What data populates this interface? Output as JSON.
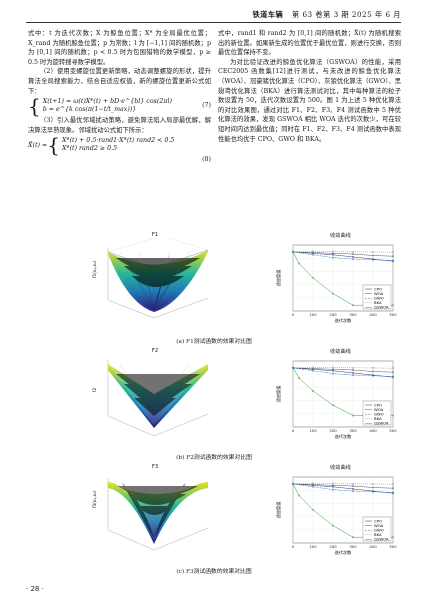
{
  "header": {
    "journal": "铁道车辆",
    "issue": "第 63 卷第 3 期 2025 年 6 月"
  },
  "left_col": {
    "p1": "式中：t 为迭代次数；X 为鲸鱼位置；X* 为全局最优位置；X_rand 为随机鲸鱼位置；p 为常数；l 为 [−1,1] 间的随机数；p 为 [0,1] 间的随机数；p < 0.5 时为包围猎物的数学模型，p ≥ 0.5 时为旋转搜寻数学模型。",
    "p2": "（2）使用变螺旋位置更新策略，动态调整螺旋的形状，提升算法全局搜索能力，结合自适应权值，新的螺旋位置更新公式如下：",
    "eq7_line1": "X(t+1) = ω(t)X*(t) + bD·e^{bl} cos(2πl)",
    "eq7_line2": "b = e^{k cos(π(1−t/t_max))}",
    "eq7_num": "(7)",
    "p3": "（3）引入最优邻域扰动策略，避免算法陷入局部最优解，解决算法早熟现象。邻域扰动公式如下所示：",
    "eq8_lhs": "X̃(t) =",
    "eq8_line1": "X*(t) + 0.5·rand1·X*(t)   rand2 < 0.5",
    "eq8_line2": "X*(t)                               rand2 ≥ 0.5",
    "eq8_num": "(8)"
  },
  "right_col": {
    "p1": "式中，rand1 和 rand2 为 [0,1] 间的随机数；X̃(t) 为随机搜索出的新位置。如果新生成的位置优于最优位置，则进行交换，否则最优位置保持不变。",
    "p2": "为对比验证改进的鲸鱼优化算法（GSWOA）的性能，采用 CEC2005 函数集[12]进行测试，与未改进的鲸鱼优化算法（WOA）、冠豪猪优化算法（CPO）、灰狼优化算法（GWO）、黑翅鸢优化算法（BKA）进行算法测试对比，其中每种算法的粒子数设置为 50，迭代次数设置为 500。图 1 为上述 5 种优化算法的对比效果图，通过对比 F1、F2、F3、F4 测试函数中 5 种优化算法的效果，发现 GSWOA 相比 WOA 迭代的次数少，可在较短时间内达到最优值；同时在 F1、F2、F3、F4 测试函数中表现性能也均优于 CPO、GWO 和 BKA。"
  },
  "figures": [
    {
      "surface_title": "F1",
      "conv_title": "收敛曲线",
      "caption": "(a) F1测试函数的效果对比图",
      "zlabel": "f1(x₁,x₂)",
      "conv_ylabel": "适应度值",
      "conv_xlabel": "迭代次数"
    },
    {
      "surface_title": "F2",
      "conv_title": "收敛曲线",
      "caption": "(b) F2测试函数的效果对比图",
      "zlabel": "f2",
      "conv_ylabel": "适应度值",
      "conv_xlabel": "迭代次数"
    },
    {
      "surface_title": "F3",
      "conv_title": "收敛曲线",
      "caption": "(c) F3测试函数的效果对比图",
      "zlabel": "f3(x₁,x₂)",
      "conv_ylabel": "适应度值",
      "conv_xlabel": "迭代次数"
    }
  ],
  "legend": [
    "CPO",
    "WOA",
    "GWO",
    "BKA",
    "GSWOA"
  ],
  "x_ticks": [
    "0",
    "100",
    "200",
    "300",
    "400",
    "500"
  ],
  "footer": {
    "page": "· 28 ·"
  }
}
